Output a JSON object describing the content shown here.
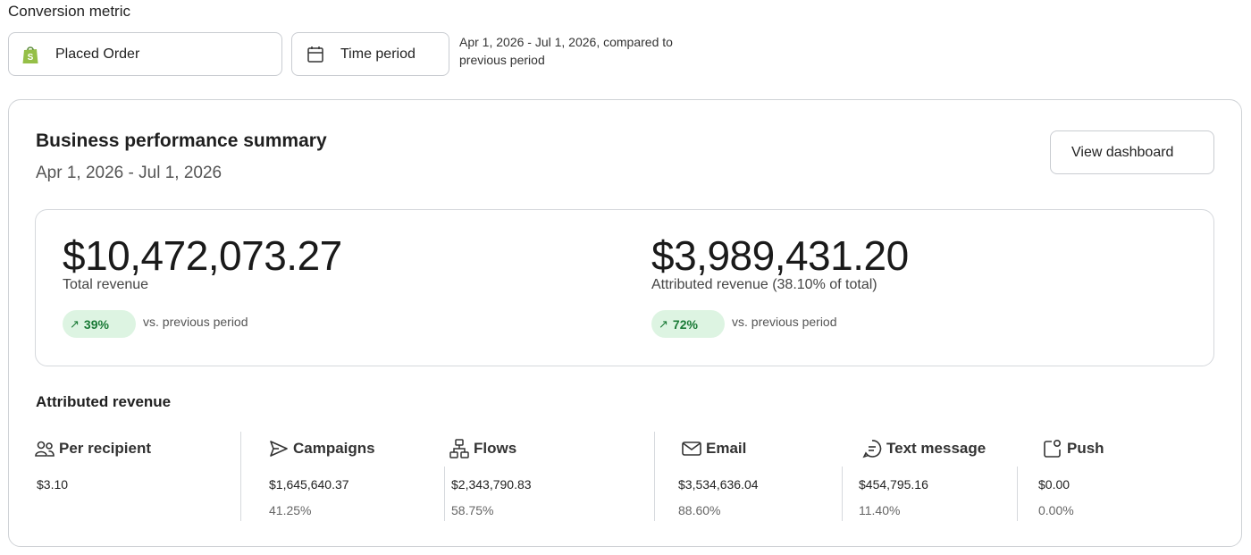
{
  "header": {
    "conversion_metric_label": "Conversion metric",
    "metric_selector": {
      "label": "Placed Order",
      "icon": "shopify-bag-icon",
      "icon_color": "#95bf47"
    },
    "period_selector": {
      "label": "Time period",
      "icon": "calendar-icon"
    },
    "period_description": "Apr 1, 2026 - Jul 1, 2026, compared to previous period"
  },
  "summary": {
    "title": "Business performance summary",
    "date_range": "Apr 1, 2026 - Jul 1, 2026",
    "view_dashboard_label": "View dashboard",
    "total": {
      "amount": "$10,472,073.27",
      "label": "Total revenue",
      "change": "39%",
      "change_icon": "trend-up-icon",
      "comparison": "vs. previous period"
    },
    "attributed": {
      "amount": "$3,989,431.20",
      "label": "Attributed revenue (38.10% of total)",
      "change": "72%",
      "change_icon": "trend-up-icon",
      "comparison": "vs. previous period"
    },
    "positive_color": "#1a7a36",
    "positive_bg": "#ddf4e2"
  },
  "attributed_revenue": {
    "title": "Attributed revenue",
    "metrics": [
      {
        "label": "Per recipient",
        "icon": "people-icon",
        "value": "$3.10",
        "percent": ""
      },
      {
        "label": "Campaigns",
        "icon": "send-icon",
        "value": "$1,645,640.37",
        "percent": "41.25%"
      },
      {
        "label": "Flows",
        "icon": "flow-icon",
        "value": "$2,343,790.83",
        "percent": "58.75%"
      },
      {
        "label": "Email",
        "icon": "envelope-icon",
        "value": "$3,534,636.04",
        "percent": "88.60%"
      },
      {
        "label": "Text message",
        "icon": "chat-icon",
        "value": "$454,795.16",
        "percent": "11.40%"
      },
      {
        "label": "Push",
        "icon": "push-notification-icon",
        "value": "$0.00",
        "percent": "0.00%"
      }
    ]
  }
}
